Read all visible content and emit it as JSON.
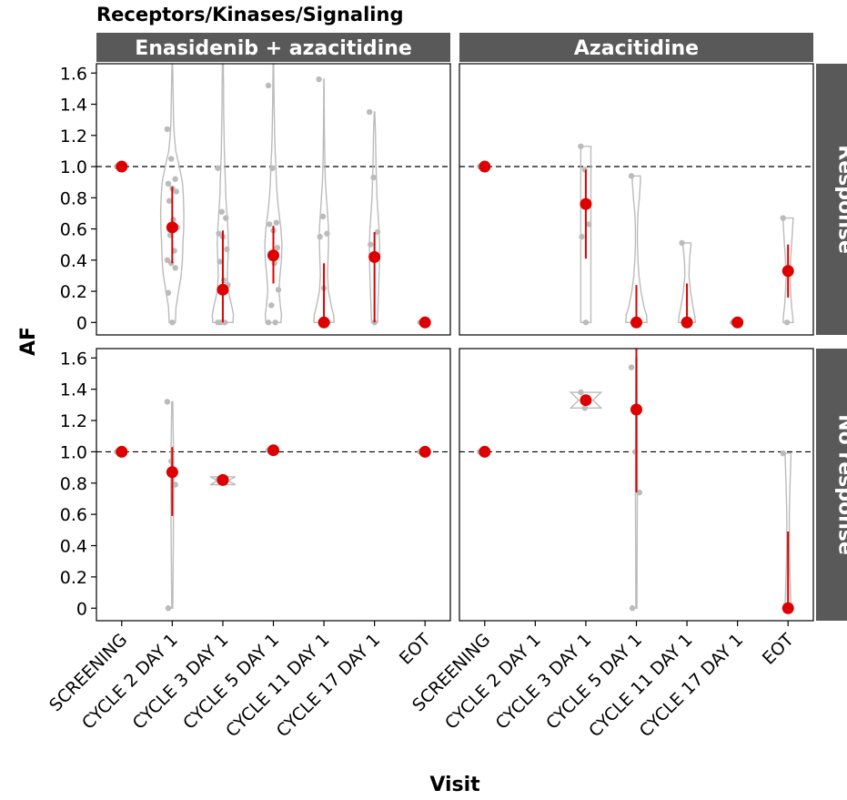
{
  "chart_data": {
    "type": "violin",
    "title": "Receptors/Kinases/Signaling",
    "xlabel": "Visit",
    "ylabel": "AF",
    "ylim": [
      -0.08,
      1.66
    ],
    "yticks": [
      0,
      0.2,
      0.4,
      0.6,
      0.8,
      1.0,
      1.2,
      1.4,
      1.6
    ],
    "ytick_labels": [
      "0",
      "0.2",
      "0.4",
      "0.6",
      "0.8",
      "1.0",
      "1.2",
      "1.4",
      "1.6"
    ],
    "reference_line": 1.0,
    "categories": [
      "SCREENING",
      "CYCLE 2 DAY 1",
      "CYCLE 3 DAY 1",
      "CYCLE 5 DAY 1",
      "CYCLE 11 DAY 1",
      "CYCLE 17 DAY 1",
      "EOT"
    ],
    "columns": [
      "Enasidenib + azacitidine",
      "Azacitidine"
    ],
    "rows": [
      "Response",
      "No response"
    ],
    "colors": {
      "mean": "#dd0000",
      "violin": "#bbbbbb",
      "points": "#bbbbbb",
      "strip": "#595959",
      "reference": "#000000"
    },
    "panels": [
      {
        "column": "Enasidenib + azacitidine",
        "row": "Response",
        "groups": [
          {
            "x": "SCREENING",
            "mean": 1.0,
            "points": [
              1.0
            ],
            "violin": null
          },
          {
            "x": "CYCLE 2 DAY 1",
            "mean": 0.61,
            "ci": [
              0.38,
              0.87
            ],
            "points": [
              1.24,
              1.05,
              0.92,
              0.89,
              0.86,
              0.84,
              0.78,
              0.66,
              0.61,
              0.56,
              0.46,
              0.4,
              0.38,
              0.35,
              0.19,
              0.0
            ],
            "violin": {
              "y": [
                0.0,
                0.1,
                0.2,
                0.3,
                0.4,
                0.5,
                0.6,
                0.7,
                0.8,
                0.9,
                1.0,
                1.1,
                1.2,
                1.3,
                1.4,
                1.5,
                1.6,
                1.66
              ],
              "w": [
                0.12,
                0.15,
                0.25,
                0.35,
                0.4,
                0.42,
                0.45,
                0.46,
                0.44,
                0.4,
                0.28,
                0.14,
                0.08,
                0.05,
                0.04,
                0.03,
                0.02,
                0.01
              ]
            }
          },
          {
            "x": "CYCLE 3 DAY 1",
            "mean": 0.21,
            "ci": [
              0.0,
              0.59
            ],
            "points": [
              0.99,
              0.71,
              0.67,
              0.57,
              0.55,
              0.47,
              0.39,
              0.27,
              0.24,
              0.0,
              0.0,
              0.0
            ],
            "violin": {
              "y": [
                0.0,
                0.05,
                0.1,
                0.2,
                0.3,
                0.4,
                0.5,
                0.6,
                0.7,
                0.8,
                0.9,
                1.0,
                1.1,
                1.2,
                1.3,
                1.4,
                1.5,
                1.6,
                1.66
              ],
              "w": [
                0.4,
                0.42,
                0.36,
                0.22,
                0.18,
                0.2,
                0.22,
                0.2,
                0.16,
                0.12,
                0.1,
                0.08,
                0.06,
                0.05,
                0.04,
                0.03,
                0.03,
                0.02,
                0.02
              ]
            }
          },
          {
            "x": "CYCLE 5 DAY 1",
            "mean": 0.43,
            "ci": [
              0.25,
              0.62
            ],
            "points": [
              1.52,
              0.99,
              0.64,
              0.63,
              0.59,
              0.48,
              0.44,
              0.38,
              0.21,
              0.11,
              0.0,
              0.0
            ],
            "violin": {
              "y": [
                0.0,
                0.05,
                0.1,
                0.2,
                0.3,
                0.4,
                0.5,
                0.6,
                0.7,
                0.8,
                0.9,
                1.0,
                1.1,
                1.2,
                1.3,
                1.4,
                1.5,
                1.6,
                1.66
              ],
              "w": [
                0.3,
                0.32,
                0.28,
                0.22,
                0.26,
                0.32,
                0.34,
                0.3,
                0.22,
                0.16,
                0.12,
                0.1,
                0.07,
                0.05,
                0.04,
                0.03,
                0.02,
                0.015,
                0.01
              ]
            }
          },
          {
            "x": "CYCLE 11 DAY 1",
            "mean": 0.0,
            "ci": [
              0.0,
              0.38
            ],
            "points": [
              1.56,
              0.68,
              0.57,
              0.55,
              0.22,
              0.0
            ],
            "violin": {
              "y": [
                0.0,
                0.05,
                0.1,
                0.2,
                0.3,
                0.4,
                0.5,
                0.6,
                0.7,
                0.8,
                0.9,
                1.0,
                1.2,
                1.4,
                1.56
              ],
              "w": [
                0.4,
                0.38,
                0.3,
                0.18,
                0.14,
                0.16,
                0.18,
                0.18,
                0.14,
                0.1,
                0.06,
                0.04,
                0.02,
                0.01,
                0.005
              ]
            }
          },
          {
            "x": "CYCLE 17 DAY 1",
            "mean": 0.42,
            "ci": [
              0.0,
              0.58
            ],
            "points": [
              1.35,
              0.93,
              0.58,
              0.5,
              0.0
            ],
            "violin": {
              "y": [
                0.0,
                0.1,
                0.2,
                0.3,
                0.4,
                0.5,
                0.6,
                0.7,
                0.8,
                0.9,
                1.0,
                1.1,
                1.2,
                1.3,
                1.35
              ],
              "w": [
                0.12,
                0.14,
                0.16,
                0.18,
                0.2,
                0.2,
                0.18,
                0.14,
                0.1,
                0.08,
                0.06,
                0.05,
                0.04,
                0.02,
                0.01
              ]
            }
          },
          {
            "x": "EOT",
            "mean": 0.0,
            "points": [
              0.0
            ],
            "violin": null
          }
        ]
      },
      {
        "column": "Azacitidine",
        "row": "Response",
        "groups": [
          {
            "x": "SCREENING",
            "mean": 1.0,
            "points": [
              1.0
            ],
            "violin": null
          },
          {
            "x": "CYCLE 3 DAY 1",
            "mean": 0.76,
            "ci": [
              0.41,
              0.98
            ],
            "points": [
              1.13,
              0.98,
              0.63,
              0.55,
              0.0
            ],
            "violin": {
              "y": [
                0.0,
                0.2,
                0.4,
                0.6,
                0.8,
                1.0,
                1.13
              ],
              "w": [
                0.2,
                0.2,
                0.2,
                0.2,
                0.2,
                0.2,
                0.2
              ]
            }
          },
          {
            "x": "CYCLE 5 DAY 1",
            "mean": 0.0,
            "ci": [
              0.0,
              0.24
            ],
            "points": [
              0.94,
              0.0,
              0.0
            ],
            "violin": {
              "y": [
                0.0,
                0.05,
                0.1,
                0.15,
                0.2,
                0.3,
                0.4,
                0.5,
                0.6,
                0.7,
                0.8,
                0.9,
                0.94
              ],
              "w": [
                0.42,
                0.4,
                0.3,
                0.24,
                0.18,
                0.1,
                0.06,
                0.04,
                0.04,
                0.06,
                0.12,
                0.16,
                0.16
              ]
            }
          },
          {
            "x": "CYCLE 11 DAY 1",
            "mean": 0.0,
            "ci": [
              0.0,
              0.25
            ],
            "points": [
              0.51,
              0.0
            ],
            "violin": {
              "y": [
                0.0,
                0.05,
                0.1,
                0.2,
                0.3,
                0.4,
                0.5,
                0.51
              ],
              "w": [
                0.34,
                0.3,
                0.24,
                0.14,
                0.08,
                0.1,
                0.16,
                0.16
              ]
            }
          },
          {
            "x": "CYCLE 17 DAY 1",
            "mean": 0.0,
            "points": [
              0.0
            ],
            "violin": null
          },
          {
            "x": "EOT",
            "mean": 0.33,
            "ci": [
              0.16,
              0.5
            ],
            "points": [
              0.67,
              0.0
            ],
            "violin": {
              "y": [
                0.0,
                0.05,
                0.1,
                0.2,
                0.3,
                0.4,
                0.5,
                0.6,
                0.67
              ],
              "w": [
                0.2,
                0.18,
                0.14,
                0.1,
                0.08,
                0.1,
                0.14,
                0.18,
                0.2
              ]
            }
          }
        ]
      },
      {
        "column": "Enasidenib + azacitidine",
        "row": "No response",
        "groups": [
          {
            "x": "SCREENING",
            "mean": 1.0,
            "points": [
              1.0
            ],
            "violin": null
          },
          {
            "x": "CYCLE 2 DAY 1",
            "mean": 0.87,
            "ci": [
              0.59,
              1.03
            ],
            "points": [
              1.32,
              0.94,
              0.79,
              0.0
            ],
            "violin": {
              "y": [
                0.0,
                0.2,
                0.4,
                0.6,
                0.8,
                1.0,
                1.2,
                1.32
              ],
              "w": [
                0.02,
                0.03,
                0.04,
                0.05,
                0.06,
                0.05,
                0.03,
                0.02
              ]
            }
          },
          {
            "x": "CYCLE 3 DAY 1",
            "mean": 0.82,
            "points": [
              0.82
            ],
            "violin": {
              "y": [
                0.79,
                0.815,
                0.84
              ],
              "w": [
                0.5,
                0.2,
                0.5
              ]
            }
          },
          {
            "x": "CYCLE 5 DAY 1",
            "mean": 1.01,
            "points": [
              1.01
            ],
            "violin": null
          },
          {
            "x": "EOT",
            "mean": 1.0,
            "points": [
              1.0
            ],
            "violin": null
          }
        ]
      },
      {
        "column": "Azacitidine",
        "row": "No response",
        "groups": [
          {
            "x": "SCREENING",
            "mean": 1.0,
            "points": [
              1.0
            ],
            "violin": null
          },
          {
            "x": "CYCLE 3 DAY 1",
            "mean": 1.33,
            "points": [
              1.38,
              1.28
            ],
            "violin": {
              "y": [
                1.28,
                1.33,
                1.38
              ],
              "w": [
                0.6,
                0.28,
                0.6
              ]
            }
          },
          {
            "x": "CYCLE 5 DAY 1",
            "mean": 1.27,
            "ci": [
              0.74,
              1.66
            ],
            "points": [
              1.54,
              1.0,
              0.74,
              0.0
            ],
            "violin": {
              "y": [
                0.0,
                0.4,
                0.8,
                1.2,
                1.6
              ],
              "w": [
                0.02,
                0.03,
                0.04,
                0.03,
                0.02
              ]
            }
          },
          {
            "x": "EOT",
            "mean": 0.0,
            "ci": [
              0.0,
              0.49
            ],
            "points": [
              0.99,
              0.0
            ],
            "violin": {
              "y": [
                0.0,
                0.2,
                0.4,
                0.6,
                0.8,
                0.99
              ],
              "w": [
                0.12,
                0.08,
                0.05,
                0.05,
                0.08,
                0.12
              ]
            }
          }
        ]
      }
    ]
  }
}
